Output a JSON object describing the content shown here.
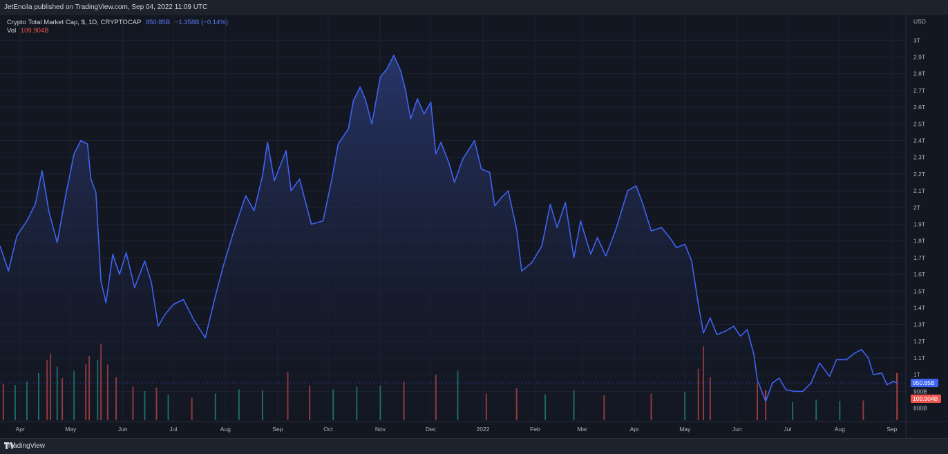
{
  "header": {
    "published": "JetEncila published on TradingView.com, Sep 04, 2022 11:09 UTC"
  },
  "legend": {
    "symbol": "Crypto Total Market Cap, $, 1D, CRYPTOCAP",
    "last_value": "950.85B",
    "change": "−1.358B (−0.14%)",
    "vol_label": "Vol",
    "vol_value": "109.904B"
  },
  "footer": {
    "brand": "TradingView"
  },
  "colors": {
    "line": "#3f63f2",
    "area_top": "#2b3a75",
    "area_bottom": "#131722",
    "vol_up": "#26a69a",
    "vol_down": "#ef5350",
    "grid": "#1f2330",
    "price_tag": "#3f63f2",
    "vol_tag": "#ef5350"
  },
  "chart_data": {
    "type": "area",
    "currency_label": "USD",
    "y_unit": "USD (T = trillion, B = billion)",
    "ylim": [
      0.72,
      3.15
    ],
    "y_ticks": [
      {
        "v": 3.0,
        "label": "3T"
      },
      {
        "v": 2.9,
        "label": "2.9T"
      },
      {
        "v": 2.8,
        "label": "2.8T"
      },
      {
        "v": 2.7,
        "label": "2.7T"
      },
      {
        "v": 2.6,
        "label": "2.6T"
      },
      {
        "v": 2.5,
        "label": "2.5T"
      },
      {
        "v": 2.4,
        "label": "2.4T"
      },
      {
        "v": 2.3,
        "label": "2.3T"
      },
      {
        "v": 2.2,
        "label": "2.2T"
      },
      {
        "v": 2.1,
        "label": "2.1T"
      },
      {
        "v": 2.0,
        "label": "2T"
      },
      {
        "v": 1.9,
        "label": "1.9T"
      },
      {
        "v": 1.8,
        "label": "1.8T"
      },
      {
        "v": 1.7,
        "label": "1.7T"
      },
      {
        "v": 1.6,
        "label": "1.6T"
      },
      {
        "v": 1.5,
        "label": "1.5T"
      },
      {
        "v": 1.4,
        "label": "1.4T"
      },
      {
        "v": 1.3,
        "label": "1.3T"
      },
      {
        "v": 1.2,
        "label": "1.2T"
      },
      {
        "v": 1.1,
        "label": "1.1T"
      },
      {
        "v": 1.0,
        "label": "1T"
      },
      {
        "v": 0.9,
        "label": "900B"
      },
      {
        "v": 0.8,
        "label": "800B"
      }
    ],
    "x_ticks": [
      {
        "date": "2021-04-01",
        "label": "Apr"
      },
      {
        "date": "2021-05-01",
        "label": "May"
      },
      {
        "date": "2021-06-01",
        "label": "Jun"
      },
      {
        "date": "2021-07-01",
        "label": "Jul"
      },
      {
        "date": "2021-08-01",
        "label": "Aug"
      },
      {
        "date": "2021-09-01",
        "label": "Sep"
      },
      {
        "date": "2021-10-01",
        "label": "Oct"
      },
      {
        "date": "2021-11-01",
        "label": "Nov"
      },
      {
        "date": "2021-12-01",
        "label": "Dec"
      },
      {
        "date": "2022-01-01",
        "label": "2022"
      },
      {
        "date": "2022-02-01",
        "label": "Feb"
      },
      {
        "date": "2022-03-01",
        "label": "Mar"
      },
      {
        "date": "2022-04-01",
        "label": "Apr"
      },
      {
        "date": "2022-05-01",
        "label": "May"
      },
      {
        "date": "2022-06-01",
        "label": "Jun"
      },
      {
        "date": "2022-07-01",
        "label": "Jul"
      },
      {
        "date": "2022-08-01",
        "label": "Aug"
      },
      {
        "date": "2022-09-01",
        "label": "Sep"
      }
    ],
    "xlim": [
      "2021-03-20",
      "2022-09-06"
    ],
    "series": [
      {
        "name": "Crypto Total Market Cap",
        "points": [
          [
            "2021-03-20",
            1.77
          ],
          [
            "2021-03-25",
            1.62
          ],
          [
            "2021-03-30",
            1.83
          ],
          [
            "2021-04-05",
            1.92
          ],
          [
            "2021-04-10",
            2.02
          ],
          [
            "2021-04-14",
            2.22
          ],
          [
            "2021-04-18",
            1.98
          ],
          [
            "2021-04-23",
            1.79
          ],
          [
            "2021-04-28",
            2.07
          ],
          [
            "2021-05-03",
            2.32
          ],
          [
            "2021-05-07",
            2.4
          ],
          [
            "2021-05-11",
            2.38
          ],
          [
            "2021-05-13",
            2.17
          ],
          [
            "2021-05-16",
            2.09
          ],
          [
            "2021-05-19",
            1.56
          ],
          [
            "2021-05-22",
            1.43
          ],
          [
            "2021-05-26",
            1.72
          ],
          [
            "2021-05-30",
            1.6
          ],
          [
            "2021-06-03",
            1.73
          ],
          [
            "2021-06-08",
            1.52
          ],
          [
            "2021-06-14",
            1.68
          ],
          [
            "2021-06-18",
            1.55
          ],
          [
            "2021-06-22",
            1.29
          ],
          [
            "2021-06-26",
            1.36
          ],
          [
            "2021-07-01",
            1.42
          ],
          [
            "2021-07-07",
            1.45
          ],
          [
            "2021-07-13",
            1.33
          ],
          [
            "2021-07-20",
            1.22
          ],
          [
            "2021-07-26",
            1.47
          ],
          [
            "2021-07-31",
            1.66
          ],
          [
            "2021-08-06",
            1.86
          ],
          [
            "2021-08-13",
            2.07
          ],
          [
            "2021-08-18",
            1.98
          ],
          [
            "2021-08-23",
            2.19
          ],
          [
            "2021-08-26",
            2.39
          ],
          [
            "2021-08-30",
            2.16
          ],
          [
            "2021-09-06",
            2.34
          ],
          [
            "2021-09-09",
            2.1
          ],
          [
            "2021-09-14",
            2.17
          ],
          [
            "2021-09-21",
            1.9
          ],
          [
            "2021-09-28",
            1.92
          ],
          [
            "2021-10-03",
            2.16
          ],
          [
            "2021-10-07",
            2.38
          ],
          [
            "2021-10-13",
            2.47
          ],
          [
            "2021-10-16",
            2.64
          ],
          [
            "2021-10-20",
            2.72
          ],
          [
            "2021-10-23",
            2.65
          ],
          [
            "2021-10-27",
            2.5
          ],
          [
            "2021-11-01",
            2.78
          ],
          [
            "2021-11-05",
            2.83
          ],
          [
            "2021-11-09",
            2.91
          ],
          [
            "2021-11-13",
            2.82
          ],
          [
            "2021-11-16",
            2.7
          ],
          [
            "2021-11-19",
            2.53
          ],
          [
            "2021-11-23",
            2.65
          ],
          [
            "2021-11-27",
            2.56
          ],
          [
            "2021-12-01",
            2.63
          ],
          [
            "2021-12-04",
            2.32
          ],
          [
            "2021-12-07",
            2.39
          ],
          [
            "2021-12-12",
            2.26
          ],
          [
            "2021-12-15",
            2.15
          ],
          [
            "2021-12-20",
            2.29
          ],
          [
            "2021-12-27",
            2.4
          ],
          [
            "2021-12-31",
            2.23
          ],
          [
            "2022-01-05",
            2.21
          ],
          [
            "2022-01-08",
            2.01
          ],
          [
            "2022-01-12",
            2.06
          ],
          [
            "2022-01-16",
            2.1
          ],
          [
            "2022-01-21",
            1.87
          ],
          [
            "2022-01-24",
            1.62
          ],
          [
            "2022-01-30",
            1.67
          ],
          [
            "2022-02-05",
            1.77
          ],
          [
            "2022-02-10",
            2.02
          ],
          [
            "2022-02-14",
            1.88
          ],
          [
            "2022-02-19",
            2.03
          ],
          [
            "2022-02-24",
            1.7
          ],
          [
            "2022-02-28",
            1.92
          ],
          [
            "2022-03-06",
            1.72
          ],
          [
            "2022-03-10",
            1.82
          ],
          [
            "2022-03-15",
            1.71
          ],
          [
            "2022-03-21",
            1.87
          ],
          [
            "2022-03-28",
            2.1
          ],
          [
            "2022-04-02",
            2.13
          ],
          [
            "2022-04-06",
            2.02
          ],
          [
            "2022-04-11",
            1.86
          ],
          [
            "2022-04-17",
            1.88
          ],
          [
            "2022-04-22",
            1.82
          ],
          [
            "2022-04-26",
            1.76
          ],
          [
            "2022-05-01",
            1.78
          ],
          [
            "2022-05-05",
            1.68
          ],
          [
            "2022-05-09",
            1.42
          ],
          [
            "2022-05-12",
            1.25
          ],
          [
            "2022-05-16",
            1.34
          ],
          [
            "2022-05-20",
            1.24
          ],
          [
            "2022-05-25",
            1.26
          ],
          [
            "2022-05-30",
            1.29
          ],
          [
            "2022-06-03",
            1.23
          ],
          [
            "2022-06-07",
            1.27
          ],
          [
            "2022-06-11",
            1.12
          ],
          [
            "2022-06-13",
            0.97
          ],
          [
            "2022-06-18",
            0.84
          ],
          [
            "2022-06-22",
            0.95
          ],
          [
            "2022-06-26",
            0.98
          ],
          [
            "2022-06-30",
            0.91
          ],
          [
            "2022-07-05",
            0.9
          ],
          [
            "2022-07-10",
            0.9
          ],
          [
            "2022-07-15",
            0.95
          ],
          [
            "2022-07-20",
            1.07
          ],
          [
            "2022-07-26",
            0.99
          ],
          [
            "2022-07-30",
            1.09
          ],
          [
            "2022-08-05",
            1.09
          ],
          [
            "2022-08-10",
            1.13
          ],
          [
            "2022-08-14",
            1.15
          ],
          [
            "2022-08-18",
            1.1
          ],
          [
            "2022-08-21",
            1.0
          ],
          [
            "2022-08-26",
            1.01
          ],
          [
            "2022-08-29",
            0.94
          ],
          [
            "2022-09-02",
            0.96
          ],
          [
            "2022-09-04",
            0.9509
          ]
        ]
      }
    ],
    "last_value": {
      "value": 0.95085,
      "label": "950.85B"
    },
    "volume": {
      "name": "Vol",
      "last_label": "109.904B",
      "unit": "USD billions",
      "bars": [
        [
          "2021-03-22",
          84,
          "down"
        ],
        [
          "2021-03-29",
          82,
          "up"
        ],
        [
          "2021-04-05",
          90,
          "up"
        ],
        [
          "2021-04-12",
          110,
          "up"
        ],
        [
          "2021-04-17",
          140,
          "down"
        ],
        [
          "2021-04-19",
          155,
          "down"
        ],
        [
          "2021-04-23",
          125,
          "up"
        ],
        [
          "2021-04-26",
          98,
          "down"
        ],
        [
          "2021-05-03",
          115,
          "up"
        ],
        [
          "2021-05-10",
          130,
          "down"
        ],
        [
          "2021-05-12",
          150,
          "down"
        ],
        [
          "2021-05-17",
          140,
          "up"
        ],
        [
          "2021-05-19",
          178,
          "down"
        ],
        [
          "2021-05-23",
          130,
          "down"
        ],
        [
          "2021-05-28",
          100,
          "down"
        ],
        [
          "2021-06-07",
          78,
          "down"
        ],
        [
          "2021-06-14",
          68,
          "up"
        ],
        [
          "2021-06-21",
          76,
          "down"
        ],
        [
          "2021-06-28",
          60,
          "up"
        ],
        [
          "2021-07-12",
          52,
          "down"
        ],
        [
          "2021-07-26",
          62,
          "up"
        ],
        [
          "2021-08-09",
          72,
          "up"
        ],
        [
          "2021-08-23",
          70,
          "up"
        ],
        [
          "2021-09-07",
          112,
          "down"
        ],
        [
          "2021-09-20",
          80,
          "down"
        ],
        [
          "2021-10-04",
          72,
          "up"
        ],
        [
          "2021-10-18",
          78,
          "up"
        ],
        [
          "2021-11-01",
          80,
          "up"
        ],
        [
          "2021-11-15",
          90,
          "down"
        ],
        [
          "2021-12-04",
          106,
          "down"
        ],
        [
          "2021-12-17",
          115,
          "up"
        ],
        [
          "2022-01-03",
          62,
          "down"
        ],
        [
          "2022-01-21",
          74,
          "down"
        ],
        [
          "2022-02-07",
          60,
          "up"
        ],
        [
          "2022-02-24",
          70,
          "up"
        ],
        [
          "2022-03-14",
          58,
          "down"
        ],
        [
          "2022-04-11",
          62,
          "down"
        ],
        [
          "2022-05-01",
          66,
          "up"
        ],
        [
          "2022-05-09",
          120,
          "down"
        ],
        [
          "2022-05-12",
          172,
          "down"
        ],
        [
          "2022-05-16",
          100,
          "down"
        ],
        [
          "2022-06-13",
          88,
          "down"
        ],
        [
          "2022-06-18",
          70,
          "down"
        ],
        [
          "2022-07-04",
          42,
          "up"
        ],
        [
          "2022-07-18",
          48,
          "up"
        ],
        [
          "2022-08-01",
          45,
          "up"
        ],
        [
          "2022-08-15",
          46,
          "down"
        ],
        [
          "2022-09-04",
          109.904,
          "down"
        ]
      ]
    }
  }
}
